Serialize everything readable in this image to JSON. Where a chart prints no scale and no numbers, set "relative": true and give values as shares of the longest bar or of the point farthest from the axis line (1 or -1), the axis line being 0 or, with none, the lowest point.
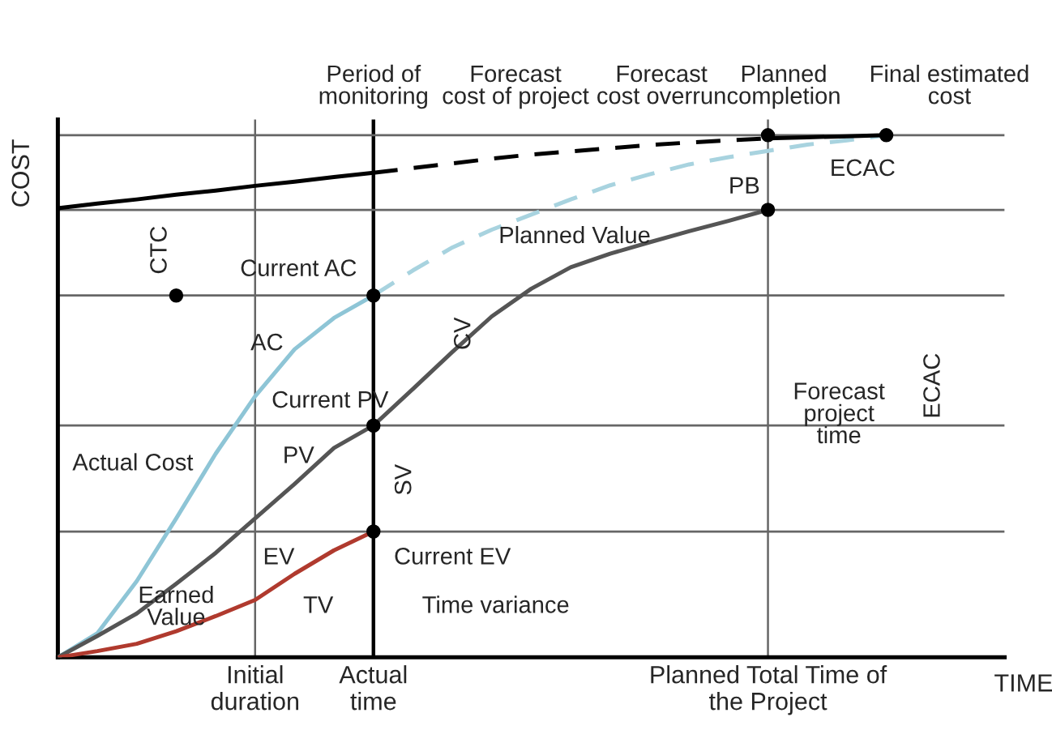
{
  "chart_data": {
    "type": "line",
    "relative": true,
    "xlabel": "TIME",
    "ylabel": "COST",
    "categories": [
      null,
      null,
      null,
      null,
      null,
      "Initial\nduration",
      null,
      null,
      "Actual\ntime",
      null,
      null,
      null,
      null,
      null,
      null,
      null,
      null,
      null,
      "Planned Total Time of\nthe Project",
      null,
      null,
      null,
      null,
      null,
      null
    ],
    "tick_labels": "x",
    "grid": false,
    "legend": false,
    "series": [
      {
        "color": "#8ec5d6",
        "line_style": "solid",
        "values": [
          0,
          0.046,
          0.146,
          0.266,
          0.39,
          0.5,
          0.59,
          0.65,
          0.693,
          null,
          null,
          null,
          null,
          null,
          null,
          null,
          null,
          null,
          null,
          null,
          null,
          null,
          null,
          null,
          null
        ]
      },
      {
        "color": "#a8d3df",
        "line_style": "dashed",
        "values": [
          null,
          null,
          null,
          null,
          null,
          null,
          null,
          null,
          0.693,
          0.741,
          0.785,
          0.819,
          0.848,
          0.877,
          0.904,
          0.925,
          0.944,
          0.958,
          0.97,
          0.982,
          0.99,
          1.0,
          null,
          null,
          null
        ]
      },
      {
        "color": "#555555",
        "line_style": "solid",
        "values": [
          0,
          0.041,
          0.084,
          0.141,
          0.2,
          0.266,
          0.332,
          0.401,
          0.444,
          0.514,
          0.585,
          0.653,
          0.706,
          0.747,
          0.773,
          0.795,
          0.816,
          0.836,
          0.857,
          null,
          null,
          null,
          null,
          null,
          null
        ]
      },
      {
        "color": "#b03a2e",
        "line_style": "solid",
        "values": [
          0,
          0.012,
          0.026,
          0.05,
          0.079,
          0.11,
          0.16,
          0.205,
          0.241,
          null,
          null,
          null,
          null,
          null,
          null,
          null,
          null,
          null,
          null,
          null,
          null,
          null,
          null,
          null,
          null
        ]
      },
      {
        "color": "#000000",
        "line_style": "solid",
        "values": [
          0.86,
          0.869,
          0.877,
          0.886,
          0.894,
          0.903,
          0.911,
          0.92,
          0.928,
          null,
          null,
          null,
          null,
          null,
          null,
          null,
          null,
          null,
          null,
          null,
          null,
          null,
          null,
          null,
          null
        ]
      },
      {
        "color": "#000000",
        "line_style": "dashed",
        "values": [
          null,
          null,
          null,
          null,
          null,
          null,
          null,
          null,
          0.928,
          0.937,
          0.946,
          0.955,
          0.963,
          0.969,
          0.975,
          0.981,
          0.986,
          0.99,
          0.994,
          null,
          null,
          null,
          null,
          null,
          null
        ]
      },
      {
        "color": "#000000",
        "line_style": "solid",
        "values": [
          null,
          null,
          null,
          null,
          null,
          null,
          null,
          null,
          null,
          null,
          null,
          null,
          null,
          null,
          null,
          null,
          null,
          null,
          0.994,
          0.996,
          0.998,
          1.0,
          null,
          null,
          null
        ]
      },
      {
        "type": "scatter",
        "color": "#000000",
        "marker": "circle",
        "values": [
          null,
          null,
          null,
          0.693,
          null,
          null,
          null,
          null,
          0.693,
          null,
          null,
          null,
          null,
          null,
          null,
          null,
          null,
          null,
          0.857,
          null,
          null,
          1.0,
          null,
          null,
          null
        ]
      },
      {
        "type": "scatter",
        "color": "#000000",
        "marker": "circle",
        "values": [
          null,
          null,
          null,
          null,
          null,
          null,
          null,
          null,
          0.444,
          null,
          null,
          null,
          null,
          null,
          null,
          null,
          null,
          null,
          1.0,
          null,
          null,
          null,
          null,
          null,
          null
        ]
      },
      {
        "type": "scatter",
        "color": "#000000",
        "marker": "circle",
        "values": [
          null,
          null,
          null,
          null,
          null,
          null,
          null,
          null,
          0.241,
          null,
          null,
          null,
          null,
          null,
          null,
          null,
          null,
          null,
          null,
          null,
          null,
          null,
          null,
          null,
          null
        ]
      }
    ],
    "ref_lines": [
      {
        "axis": "y",
        "value": 1.0,
        "color": "#666666"
      },
      {
        "axis": "y",
        "value": 0.857,
        "color": "#666666"
      },
      {
        "axis": "y",
        "value": 0.693,
        "color": "#666666"
      },
      {
        "axis": "y",
        "value": 0.444,
        "color": "#666666"
      },
      {
        "axis": "y",
        "value": 0.241,
        "color": "#666666"
      },
      {
        "axis": "x",
        "value": "Initial\nduration",
        "color": "#666666"
      },
      {
        "axis": "x",
        "value": "Actual\ntime",
        "color": "#000000"
      },
      {
        "axis": "x",
        "value": "Planned Total Time of\nthe Project",
        "color": "#666666"
      }
    ],
    "annotations": [
      "Period of\nmonitoring",
      "Forecast\ncost of project",
      "Forecast\ncost overrun",
      "Planned\ncompletion",
      "Final estimated\ncost",
      "CTC",
      "Current AC",
      "AC",
      "Planned Value",
      "Current PV",
      "PV",
      "Actual Cost",
      "SV",
      "CV",
      "EV",
      "Current EV",
      "Earned\nValue",
      "TV",
      "Time variance",
      "PB",
      "ECAC",
      "Forecast\nproject\ntime",
      "ECAC"
    ]
  }
}
